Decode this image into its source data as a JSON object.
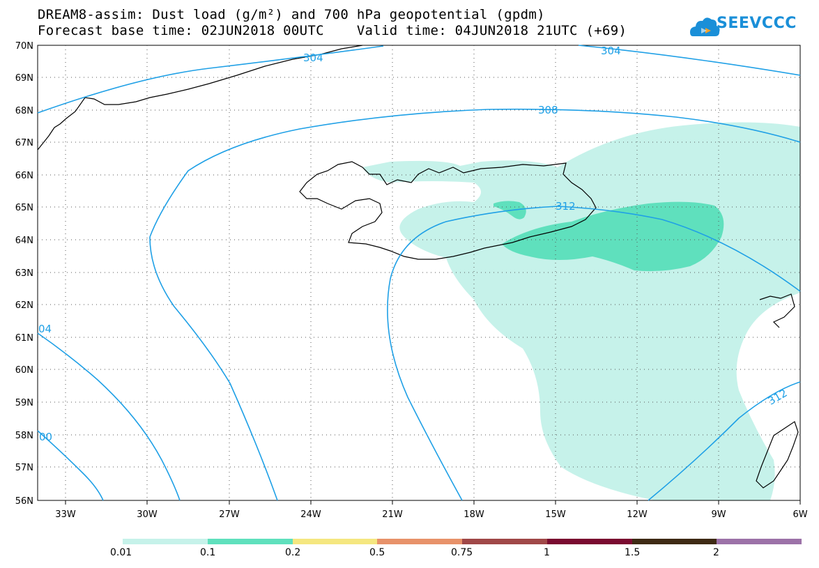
{
  "header": {
    "title_line1": "DREAM8-assim: Dust load (g/m²) and 700 hPa geopotential (gpdm)",
    "title_line2": "Forecast base time: 02JUN2018 00UTC    Valid time: 04JUN2018 21UTC (+69)",
    "logo_text": "SEEVCCC"
  },
  "axes": {
    "lat_labels": [
      "70N",
      "69N",
      "68N",
      "67N",
      "66N",
      "65N",
      "64N",
      "63N",
      "62N",
      "61N",
      "60N",
      "59N",
      "58N",
      "57N",
      "56N"
    ],
    "lon_labels": [
      "33W",
      "30W",
      "27W",
      "24W",
      "21W",
      "18W",
      "15W",
      "12W",
      "9W",
      "6W"
    ]
  },
  "contours": {
    "color": "#1fa0e6",
    "labels": [
      "304",
      "304",
      "308",
      "312",
      "312",
      "04",
      "00"
    ]
  },
  "colorbar": {
    "labels": [
      "0.01",
      "0.1",
      "0.2",
      "0.5",
      "0.75",
      "1",
      "1.5",
      "2"
    ],
    "colors": [
      "#c6f2ea",
      "#5fe0bd",
      "#f5e780",
      "#e8926a",
      "#a04848",
      "#7a0a30",
      "#3e2a14",
      "#9c72a8"
    ]
  },
  "dust_fill": {
    "light": "#c6f2ea",
    "dark": "#5fe0bd"
  }
}
